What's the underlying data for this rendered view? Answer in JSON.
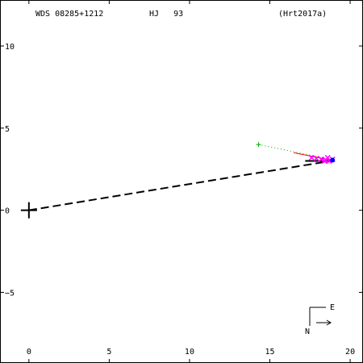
{
  "header": {
    "wds_id": "WDS 08285+1212",
    "discoverer": "HJ   93",
    "reference": "(Hrt2017a)"
  },
  "compass": {
    "north": "N",
    "east": "E"
  },
  "colors": {
    "frame": "#000000",
    "orbit": "#000000",
    "observations": "#ff00ff",
    "residual": "#ff0000",
    "early_obs": "#00aa00",
    "latest": "#0000ff"
  },
  "chart_data": {
    "type": "scatter",
    "title": "",
    "xlabel": "",
    "ylabel": "",
    "xlim": [
      -1.8,
      20.8
    ],
    "ylim": [
      -9.3,
      12.8
    ],
    "x_ticks": [
      0,
      5,
      10,
      15,
      20
    ],
    "x_tick_labels": [
      "0",
      "5",
      "10",
      "15",
      "20"
    ],
    "y_ticks": [
      10,
      5,
      0,
      -5
    ],
    "y_tick_labels": [
      "10",
      "5",
      "0",
      "−5"
    ],
    "grid": false,
    "primary_star": {
      "x": 0,
      "y": 0
    },
    "orbit_arc": [
      [
        0,
        0
      ],
      [
        18.8,
        3.0
      ]
    ],
    "observations": [
      {
        "x": 17.6,
        "y": 3.2
      },
      {
        "x": 17.9,
        "y": 3.15
      },
      {
        "x": 18.2,
        "y": 3.1
      },
      {
        "x": 18.5,
        "y": 3.05
      },
      {
        "x": 18.7,
        "y": 3.0
      },
      {
        "x": 18.9,
        "y": 3.1
      },
      {
        "x": 18.6,
        "y": 3.2
      },
      {
        "x": 18.4,
        "y": 3.0
      }
    ],
    "residual_line": [
      [
        16.5,
        3.5
      ],
      [
        18.8,
        3.05
      ]
    ],
    "early_observation": {
      "x": 14.3,
      "y": 4.0
    },
    "early_link": [
      [
        14.3,
        4.0
      ],
      [
        18.3,
        3.2
      ]
    ],
    "latest_point": {
      "x": 18.9,
      "y": 3.05
    }
  }
}
